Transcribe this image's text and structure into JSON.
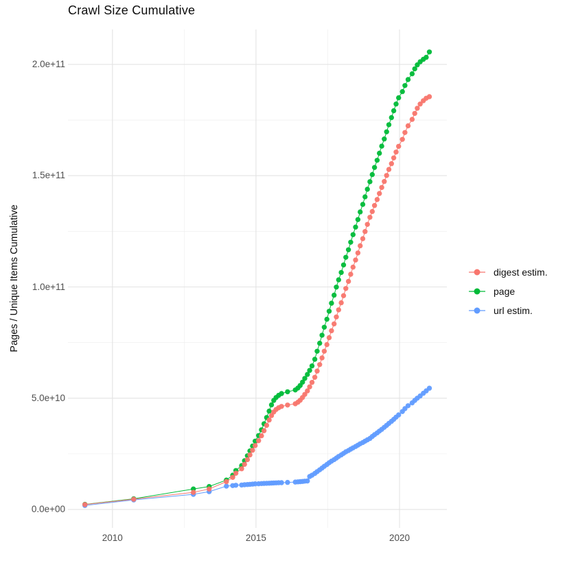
{
  "title": "Crawl Size Cumulative",
  "y_axis": {
    "title": "Pages / Unique Items Cumulative",
    "tick_labels": [
      "0.0e+00",
      "5.0e+10",
      "1.0e+11",
      "1.5e+11",
      "2.0e+11"
    ],
    "tick_values_e9": [
      0,
      50,
      100,
      150,
      200
    ]
  },
  "x_axis": {
    "tick_labels": [
      "2010",
      "2015",
      "2020"
    ],
    "tick_values": [
      2010,
      2015,
      2020
    ]
  },
  "legend": {
    "items": [
      {
        "label": "digest estim.",
        "series": "digest",
        "color": "#F8766D"
      },
      {
        "label": "page",
        "series": "page",
        "color": "#00BA38"
      },
      {
        "label": "url estim.",
        "series": "url",
        "color": "#619CFF"
      }
    ]
  },
  "colors": {
    "digest": "#F8766D",
    "page": "#00BA38",
    "url": "#619CFF",
    "grid_major": "#e3e3e3",
    "grid_minor": "#efefef",
    "tick_text": "#4d4d4d",
    "title_text": "#0d0d0d"
  },
  "chart_data": {
    "type": "scatter",
    "style": "points-with-line",
    "title": "Crawl Size Cumulative",
    "xlabel": "",
    "ylabel": "Pages / Unique Items Cumulative",
    "x_unit": "year (decimal)",
    "y_unit": "pages / unique items, value = number * 1e9",
    "xlim": [
      2008.45,
      2021.65
    ],
    "ylim_e9": [
      -8.3,
      215.7
    ],
    "grid": {
      "x_major": [
        2010,
        2015,
        2020
      ],
      "x_minor": [
        2012.5,
        2017.5
      ],
      "y_major_e9": [
        0,
        50,
        100,
        150,
        200
      ],
      "y_minor_e9": [
        25,
        75,
        125,
        175
      ]
    },
    "legend_position": "right-center",
    "x": [
      2009.04,
      2010.74,
      2012.82,
      2013.37,
      2013.97,
      2014.19,
      2014.3,
      2014.5,
      2014.6,
      2014.7,
      2014.79,
      2014.88,
      2014.97,
      2015.09,
      2015.19,
      2015.28,
      2015.37,
      2015.46,
      2015.54,
      2015.62,
      2015.7,
      2015.79,
      2015.89,
      2016.1,
      2016.37,
      2016.46,
      2016.54,
      2016.62,
      2016.7,
      2016.79,
      2016.87,
      2016.95,
      2017.05,
      2017.13,
      2017.22,
      2017.3,
      2017.38,
      2017.47,
      2017.55,
      2017.63,
      2017.72,
      2017.8,
      2017.88,
      2017.97,
      2018.05,
      2018.13,
      2018.22,
      2018.3,
      2018.38,
      2018.47,
      2018.55,
      2018.63,
      2018.72,
      2018.8,
      2018.88,
      2018.97,
      2019.05,
      2019.13,
      2019.22,
      2019.3,
      2019.38,
      2019.47,
      2019.55,
      2019.63,
      2019.72,
      2019.8,
      2019.88,
      2019.97,
      2020.1,
      2020.19,
      2020.3,
      2020.44,
      2020.53,
      2020.62,
      2020.72,
      2020.83,
      2020.93,
      2021.04
    ],
    "series": [
      {
        "name": "page",
        "color": "#00BA38",
        "values_e9": [
          2.3,
          4.8,
          9.2,
          10.3,
          13.2,
          15.4,
          17.5,
          19.7,
          21.9,
          24.1,
          26.3,
          28.5,
          30.7,
          33.2,
          35.8,
          38.5,
          41.3,
          44.2,
          47.0,
          49.0,
          50.3,
          51.3,
          52.1,
          52.9,
          53.7,
          54.6,
          55.7,
          57.2,
          58.9,
          60.7,
          62.5,
          64.5,
          67.5,
          71.1,
          74.7,
          78.3,
          81.9,
          85.5,
          89.1,
          92.7,
          96.3,
          99.9,
          103.2,
          106.5,
          109.9,
          113.3,
          116.7,
          120.1,
          123.5,
          126.9,
          130.3,
          133.7,
          137.1,
          140.5,
          143.9,
          147.3,
          150.5,
          153.7,
          156.9,
          160.1,
          163.3,
          166.5,
          169.7,
          172.9,
          176.1,
          179.2,
          182.2,
          185.0,
          187.8,
          190.5,
          193.2,
          195.8,
          198.0,
          199.8,
          201.2,
          202.3,
          203.2,
          205.6
        ]
      },
      {
        "name": "url",
        "color": "#619CFF",
        "values_e9": [
          1.8,
          4.3,
          6.8,
          8.0,
          10.5,
          10.7,
          10.85,
          11.0,
          11.1,
          11.2,
          11.3,
          11.4,
          11.5,
          11.55,
          11.62,
          11.7,
          11.75,
          11.8,
          11.85,
          11.9,
          11.95,
          12.0,
          12.05,
          12.15,
          12.3,
          12.4,
          12.5,
          12.6,
          12.7,
          12.8,
          14.8,
          15.4,
          16.2,
          17.0,
          17.8,
          18.6,
          19.4,
          20.2,
          21.0,
          21.7,
          22.4,
          23.1,
          23.8,
          24.5,
          25.2,
          25.9,
          26.5,
          27.1,
          27.7,
          28.3,
          28.9,
          29.5,
          30.1,
          30.7,
          31.3,
          31.9,
          32.8,
          33.6,
          34.4,
          35.2,
          36.0,
          36.9,
          37.8,
          38.7,
          39.6,
          40.5,
          41.5,
          42.5,
          44.0,
          45.3,
          46.6,
          47.9,
          49.0,
          50.0,
          51.0,
          52.2,
          53.3,
          54.5
        ]
      },
      {
        "name": "digest",
        "color": "#F8766D",
        "values_e9": [
          2.2,
          4.6,
          7.7,
          9.2,
          12.5,
          14.4,
          16.3,
          18.3,
          20.3,
          22.4,
          24.5,
          26.6,
          28.7,
          30.9,
          33.1,
          35.4,
          37.8,
          40.2,
          42.2,
          43.8,
          44.9,
          45.7,
          46.3,
          46.9,
          47.5,
          48.2,
          49.1,
          50.3,
          51.7,
          53.3,
          55.1,
          57.1,
          59.4,
          62.2,
          65.1,
          68.1,
          71.1,
          74.1,
          77.2,
          80.3,
          83.4,
          86.5,
          89.7,
          92.9,
          96.1,
          99.3,
          102.5,
          105.7,
          108.9,
          112.1,
          115.3,
          118.5,
          121.7,
          124.9,
          128.1,
          131.3,
          133.9,
          136.6,
          139.3,
          142.0,
          144.7,
          147.4,
          150.1,
          152.8,
          155.4,
          158.0,
          160.6,
          163.2,
          166.3,
          169.4,
          172.4,
          175.3,
          178.0,
          180.3,
          182.2,
          183.7,
          184.8,
          185.5
        ]
      }
    ]
  }
}
